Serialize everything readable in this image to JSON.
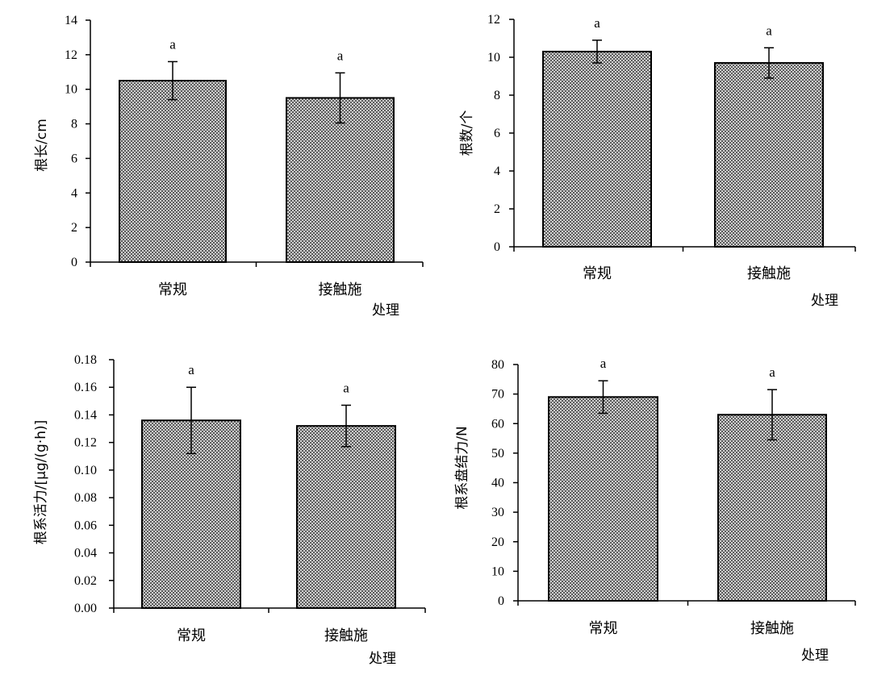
{
  "chart_data": [
    {
      "type": "bar",
      "categories": [
        "常规",
        "接触施"
      ],
      "values": [
        10.5,
        9.5
      ],
      "errors": [
        1.1,
        1.45
      ],
      "significance": [
        "a",
        "a"
      ],
      "ylabel": "根长/cm",
      "xlabel": "处理",
      "ylim": [
        0,
        14
      ],
      "yticks": [
        0,
        2,
        4,
        6,
        8,
        10,
        12,
        14
      ],
      "tick_decimals": 0
    },
    {
      "type": "bar",
      "categories": [
        "常规",
        "接触施"
      ],
      "values": [
        10.3,
        9.7
      ],
      "errors": [
        0.6,
        0.8
      ],
      "significance": [
        "a",
        "a"
      ],
      "ylabel": "根数/个",
      "xlabel": "处理",
      "ylim": [
        0,
        12
      ],
      "yticks": [
        0,
        2,
        4,
        6,
        8,
        10,
        12
      ],
      "tick_decimals": 0
    },
    {
      "type": "bar",
      "categories": [
        "常规",
        "接触施"
      ],
      "values": [
        0.136,
        0.132
      ],
      "errors": [
        0.024,
        0.015
      ],
      "significance": [
        "a",
        "a"
      ],
      "ylabel": "根系活力/[μg/(g·h)]",
      "xlabel": "处理",
      "ylim": [
        0,
        0.18
      ],
      "yticks": [
        0,
        0.02,
        0.04,
        0.06,
        0.08,
        0.1,
        0.12,
        0.14,
        0.16,
        0.18
      ],
      "tick_decimals": 2
    },
    {
      "type": "bar",
      "categories": [
        "常规",
        "接触施"
      ],
      "values": [
        69,
        63
      ],
      "errors": [
        5.5,
        8.5
      ],
      "significance": [
        "a",
        "a"
      ],
      "ylabel": "根系盘结力/N",
      "xlabel": "处理",
      "ylim": [
        0,
        80
      ],
      "yticks": [
        0,
        10,
        20,
        30,
        40,
        50,
        60,
        70,
        80
      ],
      "tick_decimals": 0
    }
  ],
  "colors": {
    "bar_fill_dark": "#5c5c5c",
    "bar_fill_light": "#cfcfcf",
    "bar_border": "#000000",
    "axis": "#000000"
  }
}
